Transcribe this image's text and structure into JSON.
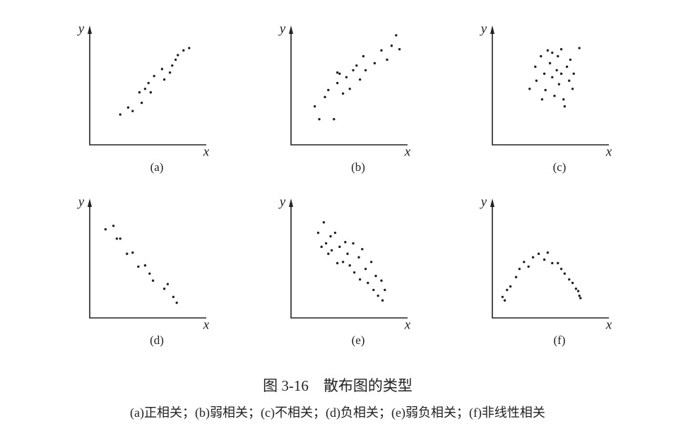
{
  "chart_data": [
    {
      "type": "scatter",
      "label": "(a)",
      "x_label": "x",
      "y_label": "y",
      "xlim": [
        0,
        100
      ],
      "ylim": [
        0,
        100
      ],
      "x": [
        27,
        34,
        38,
        46,
        44,
        49,
        52,
        54,
        57,
        64,
        66,
        71,
        76,
        78,
        83,
        88,
        73
      ],
      "y": [
        26,
        32,
        29,
        36,
        45,
        48,
        53,
        45,
        59,
        65,
        56,
        62,
        73,
        77,
        81,
        83,
        68
      ]
    },
    {
      "type": "scatter",
      "label": "(b)",
      "x_label": "x",
      "y_label": "y",
      "xlim": [
        0,
        100
      ],
      "ylim": [
        0,
        100
      ],
      "x": [
        21,
        25,
        38,
        30,
        33,
        41,
        43,
        46,
        49,
        52,
        55,
        58,
        61,
        64,
        66,
        74,
        80,
        85,
        89,
        93,
        96,
        41
      ],
      "y": [
        33,
        22,
        22,
        41,
        47,
        53,
        61,
        44,
        58,
        48,
        64,
        68,
        56,
        76,
        64,
        70,
        81,
        73,
        85,
        94,
        82,
        62
      ]
    },
    {
      "type": "scatter",
      "label": "(c)",
      "x_label": "x",
      "y_label": "y",
      "xlim": [
        0,
        100
      ],
      "ylim": [
        0,
        100
      ],
      "x": [
        33,
        39,
        38,
        43,
        46,
        47,
        49,
        51,
        53,
        55,
        57,
        58,
        59,
        61,
        63,
        64,
        66,
        68,
        69,
        71,
        72,
        77,
        44,
        53,
        61
      ],
      "y": [
        48,
        55,
        67,
        76,
        61,
        47,
        81,
        70,
        58,
        42,
        64,
        76,
        52,
        82,
        39,
        33,
        67,
        55,
        73,
        48,
        61,
        83,
        39,
        79,
        61
      ]
    },
    {
      "type": "scatter",
      "label": "(d)",
      "x_label": "x",
      "y_label": "y",
      "xlim": [
        0,
        100
      ],
      "ylim": [
        0,
        100
      ],
      "x": [
        14,
        21,
        24,
        27,
        33,
        38,
        43,
        49,
        53,
        56,
        66,
        69,
        74,
        77
      ],
      "y": [
        76,
        79,
        68,
        68,
        55,
        56,
        44,
        45,
        38,
        32,
        25,
        29,
        18,
        13
      ]
    },
    {
      "type": "scatter",
      "label": "(e)",
      "x_label": "x",
      "y_label": "y",
      "xlim": [
        0,
        100
      ],
      "ylim": [
        0,
        100
      ],
      "x": [
        24,
        29,
        31,
        35,
        36,
        39,
        43,
        46,
        48,
        50,
        52,
        55,
        56,
        60,
        61,
        63,
        66,
        68,
        71,
        73,
        75,
        77,
        80,
        81,
        83,
        27,
        33,
        41
      ],
      "y": [
        73,
        82,
        64,
        70,
        58,
        73,
        61,
        48,
        65,
        55,
        45,
        64,
        39,
        52,
        33,
        59,
        42,
        30,
        48,
        24,
        36,
        19,
        32,
        15,
        24,
        61,
        55,
        47
      ]
    },
    {
      "type": "scatter",
      "label": "(f)",
      "x_label": "x",
      "y_label": "y",
      "xlim": [
        0,
        100
      ],
      "ylim": [
        0,
        100
      ],
      "x": [
        9,
        11,
        13,
        16,
        21,
        24,
        28,
        32,
        36,
        41,
        46,
        49,
        53,
        58,
        61,
        64,
        68,
        71,
        74,
        76,
        77,
        78
      ],
      "y": [
        18,
        15,
        24,
        27,
        35,
        42,
        48,
        44,
        52,
        55,
        50,
        56,
        47,
        47,
        42,
        38,
        33,
        30,
        25,
        23,
        19,
        17
      ]
    }
  ],
  "figure": {
    "title": "图 3-16　散布图的类型",
    "caption": "(a)正相关；(b)弱相关；(c)不相关；(d)负相关；(e)弱负相关；(f)非线性相关"
  }
}
